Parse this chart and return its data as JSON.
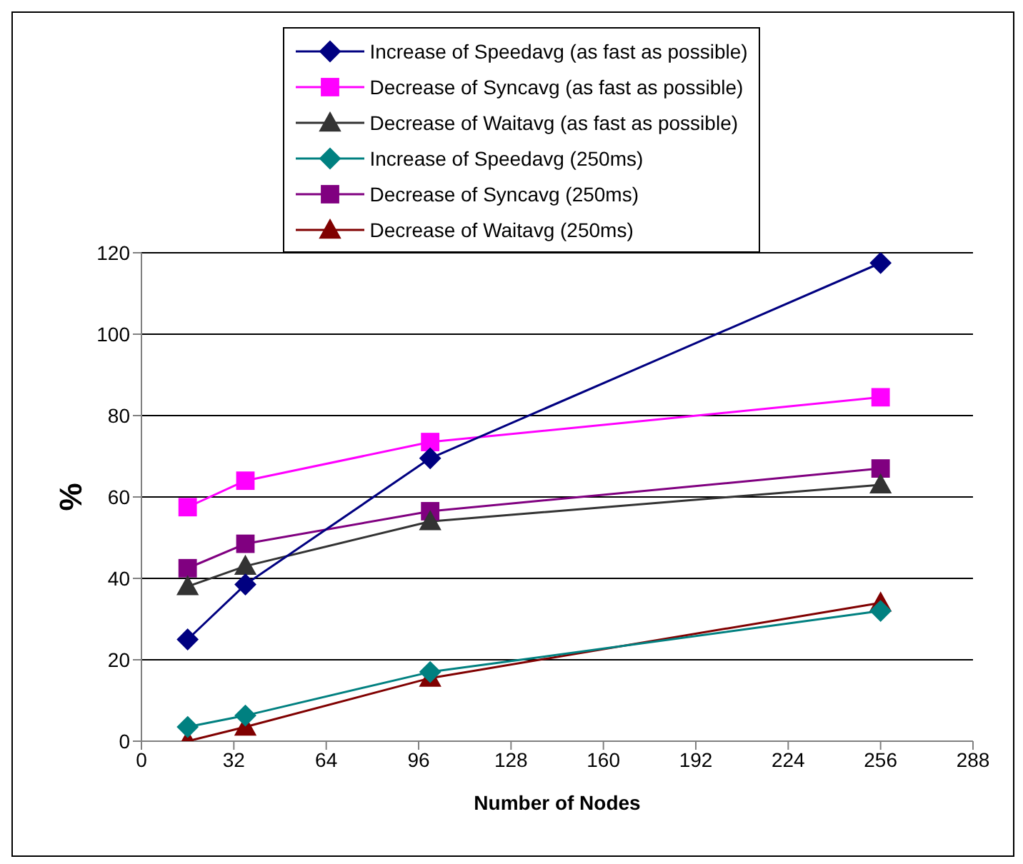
{
  "chart_data": {
    "type": "line",
    "xlabel": "Number of Nodes",
    "ylabel": "%",
    "x": [
      16,
      36,
      100,
      256
    ],
    "xlim": [
      0,
      288
    ],
    "xticks": [
      0,
      32,
      64,
      96,
      128,
      160,
      192,
      224,
      256,
      288
    ],
    "ylim": [
      0,
      120
    ],
    "yticks": [
      0,
      20,
      40,
      60,
      80,
      100,
      120
    ],
    "grid": "y",
    "legend": "top",
    "series": [
      {
        "name": "Increase of Speedavg (as fast as possible)",
        "color": "#000080",
        "marker": "diamond",
        "values": [
          25,
          38.5,
          69.5,
          117.5
        ]
      },
      {
        "name": "Decrease of Syncavg (as fast as possible)",
        "color": "#ff00ff",
        "marker": "square",
        "values": [
          57.5,
          64,
          73.5,
          84.5
        ]
      },
      {
        "name": "Decrease of Waitavg (as fast as possible)",
        "color": "#333333",
        "marker": "triangle",
        "values": [
          38,
          43,
          54,
          63
        ]
      },
      {
        "name": "Increase of Speedavg (250ms)",
        "color": "#008080",
        "marker": "diamond",
        "values": [
          3.5,
          6.3,
          17,
          32
        ]
      },
      {
        "name": "Decrease of Syncavg (250ms)",
        "color": "#800080",
        "marker": "square",
        "values": [
          42.5,
          48.5,
          56.5,
          67
        ]
      },
      {
        "name": "Decrease of Waitavg (250ms)",
        "color": "#800000",
        "marker": "triangle",
        "values": [
          0,
          3.5,
          15.5,
          34
        ]
      }
    ]
  }
}
